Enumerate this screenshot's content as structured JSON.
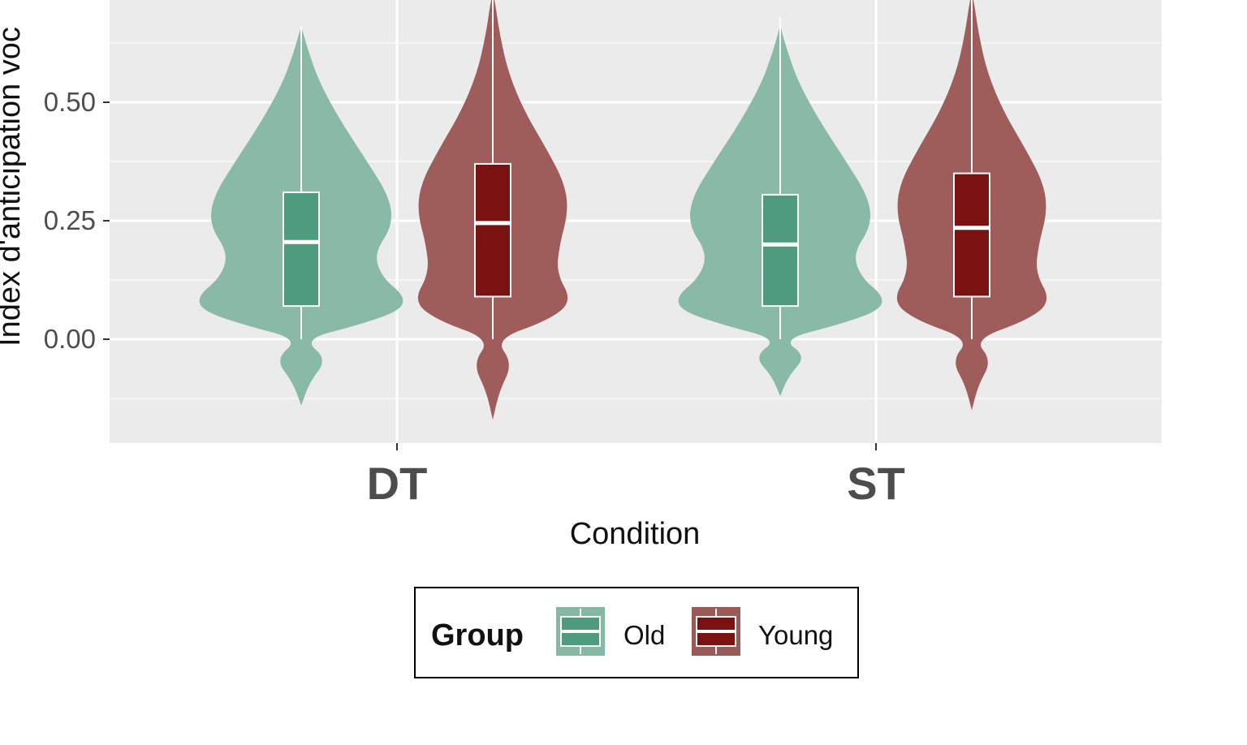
{
  "chart_data": {
    "type": "violin",
    "xlabel": "Condition",
    "ylabel": "Index d'anticipation voc",
    "categories": [
      "DT",
      "ST"
    ],
    "y_ticks": [
      0.0,
      0.25,
      0.5
    ],
    "y_tick_labels": [
      "0.00",
      "0.25",
      "0.50"
    ],
    "ylim": [
      -0.22,
      0.72
    ],
    "grid": true,
    "legend": {
      "title": "Group",
      "position": "bottom",
      "entries": [
        "Old",
        "Young"
      ]
    },
    "series": [
      {
        "name": "Old",
        "color": "#4f9b7e",
        "violin_color": "#86b9a4",
        "boxes": [
          {
            "category": "DT",
            "q1": 0.07,
            "median": 0.205,
            "q3": 0.31,
            "whisker_low": 0.0,
            "whisker_high": 0.66,
            "min": -0.14,
            "max": 0.66
          },
          {
            "category": "ST",
            "q1": 0.07,
            "median": 0.2,
            "q3": 0.305,
            "whisker_low": 0.0,
            "whisker_high": 0.68,
            "min": -0.12,
            "max": 0.68
          }
        ]
      },
      {
        "name": "Young",
        "color": "#7a1212",
        "violin_color": "#9c5a57",
        "boxes": [
          {
            "category": "DT",
            "q1": 0.09,
            "median": 0.245,
            "q3": 0.37,
            "whisker_low": 0.0,
            "whisker_high": 0.72,
            "min": -0.17,
            "max": 0.72
          },
          {
            "category": "ST",
            "q1": 0.09,
            "median": 0.235,
            "q3": 0.35,
            "whisker_low": 0.0,
            "whisker_high": 0.72,
            "min": -0.15,
            "max": 0.72
          }
        ]
      }
    ]
  }
}
